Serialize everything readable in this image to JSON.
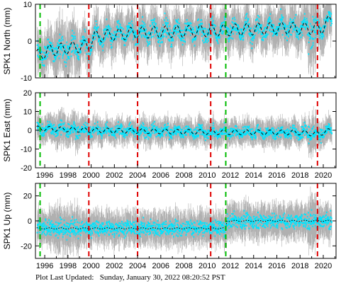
{
  "footer": {
    "label": "Plot Last Updated:",
    "value": "Sunday, January 30, 2022 08:20:52 PST"
  },
  "colors": {
    "data": "#00e5ff",
    "error_bars": "#b0b0b0",
    "model": "#000000",
    "green_marker": "#00bb00",
    "red_marker": "#e00000",
    "frame": "#000000"
  },
  "chart_data": [
    {
      "type": "scatter",
      "ylabel": "SPK1 North (mm)",
      "xlim": [
        1995.2,
        2021.1
      ],
      "ylim": [
        -10,
        10
      ],
      "yticks": [
        -10,
        0,
        10
      ],
      "xticks": [
        1996,
        1998,
        2000,
        2002,
        2004,
        2006,
        2008,
        2010,
        2012,
        2014,
        2016,
        2018,
        2020
      ],
      "show_xtick_labels": false,
      "series_spread": 2.5,
      "model": {
        "style": "dashed",
        "points": [
          [
            1995.3,
            -4
          ],
          [
            1996.5,
            -2.5
          ],
          [
            1999.8,
            -1.2
          ],
          [
            2000.3,
            1.2
          ],
          [
            2004,
            2.3
          ],
          [
            2010.3,
            2.8
          ],
          [
            2016,
            3.5
          ],
          [
            2019.4,
            3.4
          ],
          [
            2019.9,
            3.6
          ],
          [
            2020.7,
            6
          ]
        ],
        "seasonal_amplitude_mm": 1.6
      },
      "vertical_markers": [
        {
          "x": 1995.6,
          "color": "green",
          "style": "dashed"
        },
        {
          "x": 1999.8,
          "color": "red",
          "style": "dashed"
        },
        {
          "x": 2004.0,
          "color": "red",
          "style": "dashed"
        },
        {
          "x": 2010.3,
          "color": "red",
          "style": "dashed"
        },
        {
          "x": 2011.6,
          "color": "green",
          "style": "dashed"
        },
        {
          "x": 2019.5,
          "color": "red",
          "style": "dashed"
        }
      ]
    },
    {
      "type": "scatter",
      "ylabel": "SPK1 East (mm)",
      "xlim": [
        1995.2,
        2021.1
      ],
      "ylim": [
        -20,
        20
      ],
      "yticks": [
        -20,
        -10,
        0,
        10,
        20
      ],
      "xticks": [
        1996,
        1998,
        2000,
        2002,
        2004,
        2006,
        2008,
        2010,
        2012,
        2014,
        2016,
        2018,
        2020
      ],
      "show_xtick_labels": true,
      "series_spread": 3,
      "model": {
        "style": "dashed",
        "points": [
          [
            1995.3,
            1
          ],
          [
            2000,
            0
          ],
          [
            2010,
            -1
          ],
          [
            2018,
            -1.2
          ],
          [
            2019.5,
            -2
          ],
          [
            2020.7,
            0
          ]
        ],
        "seasonal_amplitude_mm": 1.3
      },
      "vertical_markers": [
        {
          "x": 1995.6,
          "color": "green",
          "style": "dashed"
        },
        {
          "x": 1999.8,
          "color": "red",
          "style": "dashed"
        },
        {
          "x": 2004.0,
          "color": "red",
          "style": "dashed"
        },
        {
          "x": 2010.3,
          "color": "red",
          "style": "dashed"
        },
        {
          "x": 2011.6,
          "color": "green",
          "style": "dashed"
        },
        {
          "x": 2019.5,
          "color": "red",
          "style": "dashed"
        }
      ]
    },
    {
      "type": "scatter",
      "ylabel": "SPK1 Up (mm)",
      "xlim": [
        1995.2,
        2021.1
      ],
      "ylim": [
        -30,
        30
      ],
      "yticks": [
        -20,
        0,
        20
      ],
      "xticks": [
        1996,
        1998,
        2000,
        2002,
        2004,
        2006,
        2008,
        2010,
        2012,
        2014,
        2016,
        2018,
        2020
      ],
      "show_xtick_labels": true,
      "series_spread": 6,
      "model": {
        "style": "dotted",
        "points": [
          [
            1995.3,
            -6
          ],
          [
            1996,
            -6
          ],
          [
            2011.6,
            -6
          ],
          [
            2011.7,
            0
          ],
          [
            2019.5,
            0
          ],
          [
            2020.7,
            0
          ]
        ],
        "seasonal_amplitude_mm": 0.5
      },
      "vertical_markers": [
        {
          "x": 1995.6,
          "color": "green",
          "style": "dashed"
        },
        {
          "x": 1999.8,
          "color": "red",
          "style": "dashed"
        },
        {
          "x": 2004.0,
          "color": "red",
          "style": "dashed"
        },
        {
          "x": 2010.3,
          "color": "red",
          "style": "dashed"
        },
        {
          "x": 2011.6,
          "color": "green",
          "style": "dashed"
        },
        {
          "x": 2019.5,
          "color": "red",
          "style": "dashed"
        }
      ]
    }
  ]
}
